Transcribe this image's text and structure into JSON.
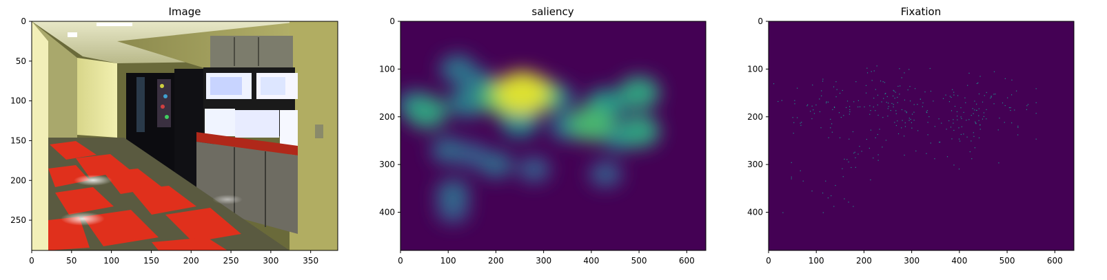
{
  "chart_data": [
    {
      "type": "heatmap",
      "title": "Image",
      "xlabel": "",
      "ylabel": "",
      "xlim": [
        0,
        384
      ],
      "ylim": [
        288,
        0
      ],
      "xticks": [
        0,
        50,
        100,
        150,
        200,
        250,
        300,
        350
      ],
      "yticks": [
        0,
        50,
        100,
        150,
        200,
        250
      ],
      "content": "photograph-of-office-kitchen-hallway"
    },
    {
      "type": "heatmap",
      "title": "saliency",
      "xlabel": "",
      "ylabel": "",
      "xlim": [
        0,
        640
      ],
      "ylim": [
        480,
        0
      ],
      "xticks": [
        0,
        100,
        200,
        300,
        400,
        500,
        600
      ],
      "yticks": [
        0,
        100,
        200,
        300,
        400
      ],
      "colormap": "viridis",
      "background_color": "#440154",
      "blobs": [
        {
          "x": 255,
          "y": 150,
          "value": 1.0
        },
        {
          "x": 215,
          "y": 160,
          "value": 0.75
        },
        {
          "x": 290,
          "y": 155,
          "value": 0.7
        },
        {
          "x": 55,
          "y": 190,
          "value": 0.6
        },
        {
          "x": 30,
          "y": 175,
          "value": 0.4
        },
        {
          "x": 400,
          "y": 215,
          "value": 0.7
        },
        {
          "x": 430,
          "y": 175,
          "value": 0.55
        },
        {
          "x": 500,
          "y": 150,
          "value": 0.6
        },
        {
          "x": 500,
          "y": 230,
          "value": 0.6
        },
        {
          "x": 120,
          "y": 100,
          "value": 0.4
        },
        {
          "x": 160,
          "y": 130,
          "value": 0.4
        },
        {
          "x": 140,
          "y": 170,
          "value": 0.45
        },
        {
          "x": 250,
          "y": 210,
          "value": 0.5
        },
        {
          "x": 330,
          "y": 160,
          "value": 0.35
        },
        {
          "x": 350,
          "y": 220,
          "value": 0.4
        },
        {
          "x": 460,
          "y": 240,
          "value": 0.45
        },
        {
          "x": 100,
          "y": 270,
          "value": 0.35
        },
        {
          "x": 150,
          "y": 280,
          "value": 0.3
        },
        {
          "x": 200,
          "y": 300,
          "value": 0.35
        },
        {
          "x": 280,
          "y": 310,
          "value": 0.3
        },
        {
          "x": 430,
          "y": 320,
          "value": 0.3
        },
        {
          "x": 110,
          "y": 360,
          "value": 0.35
        },
        {
          "x": 110,
          "y": 395,
          "value": 0.3
        }
      ]
    },
    {
      "type": "scatter",
      "title": "Fixation",
      "xlabel": "",
      "ylabel": "",
      "xlim": [
        0,
        640
      ],
      "ylim": [
        480,
        0
      ],
      "xticks": [
        0,
        100,
        200,
        300,
        400,
        500,
        600
      ],
      "yticks": [
        0,
        100,
        200,
        300,
        400
      ],
      "background_color": "#440154",
      "point_color": "#21918c",
      "cluster_centers": [
        {
          "x": 255,
          "y": 160,
          "n": 70
        },
        {
          "x": 420,
          "y": 180,
          "n": 55
        },
        {
          "x": 480,
          "y": 190,
          "n": 35
        },
        {
          "x": 70,
          "y": 185,
          "n": 25
        },
        {
          "x": 160,
          "y": 170,
          "n": 35
        },
        {
          "x": 330,
          "y": 200,
          "n": 30
        },
        {
          "x": 220,
          "y": 250,
          "n": 25
        },
        {
          "x": 400,
          "y": 260,
          "n": 20
        },
        {
          "x": 130,
          "y": 320,
          "n": 18
        },
        {
          "x": 110,
          "y": 380,
          "n": 8
        }
      ]
    }
  ]
}
